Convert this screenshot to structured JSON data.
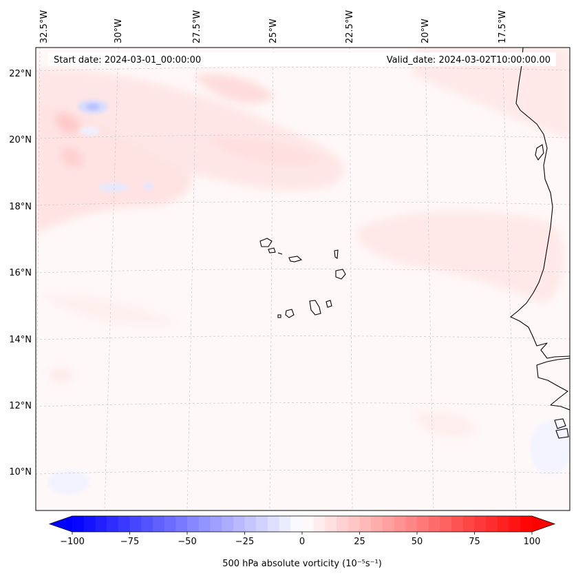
{
  "header": {
    "start_date": "Start date: 2024-03-01_00:00:00",
    "valid_date": "Valid_date: 2024-03-02T10:00:00.00"
  },
  "map": {
    "lon_labels": [
      "32.5°W",
      "30°W",
      "27.5°W",
      "25°W",
      "22.5°W",
      "20°W",
      "17.5°W"
    ],
    "lat_labels": [
      "22°N",
      "20°N",
      "18°N",
      "16°N",
      "14°N",
      "12°N",
      "10°N"
    ],
    "variable": "500 hPa absolute vorticity"
  },
  "colorbar": {
    "label": "500 hPa absolute vorticity (10⁻⁵s⁻¹)",
    "ticks": [
      "−100",
      "−75",
      "−50",
      "−25",
      "0",
      "25",
      "50",
      "75",
      "100"
    ],
    "min": -100,
    "max": 100,
    "levels": 40,
    "cmap": "bwr",
    "colors": {
      "low": "#0000ff",
      "mid": "#ffffff",
      "high": "#ff0000"
    }
  }
}
